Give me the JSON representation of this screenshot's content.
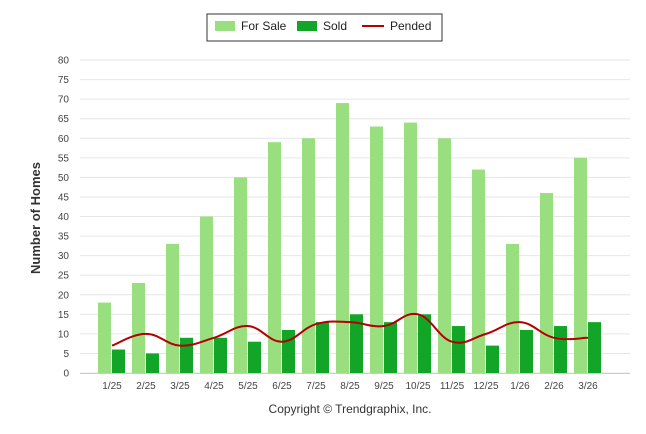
{
  "chart_data": {
    "type": "bar",
    "title": "",
    "xlabel": "",
    "ylabel": "Number of Homes",
    "ylim": [
      0,
      80
    ],
    "ytick_step": 5,
    "categories": [
      "1/25",
      "2/25",
      "3/25",
      "4/25",
      "5/25",
      "6/25",
      "7/25",
      "8/25",
      "9/25",
      "10/25",
      "11/25",
      "12/25",
      "1/26",
      "2/26",
      "3/26"
    ],
    "series": [
      {
        "name": "For Sale",
        "type": "bar",
        "color": "#9adf7f",
        "values": [
          18,
          23,
          33,
          40,
          50,
          59,
          60,
          69,
          63,
          64,
          60,
          52,
          33,
          46,
          55
        ]
      },
      {
        "name": "Sold",
        "type": "bar",
        "color": "#13a528",
        "values": [
          6,
          5,
          9,
          9,
          8,
          11,
          13,
          15,
          13,
          15,
          12,
          7,
          11,
          12,
          13
        ]
      },
      {
        "name": "Pended",
        "type": "line",
        "color": "#b30000",
        "values": [
          7,
          10,
          7,
          9,
          12,
          8,
          12.5,
          13,
          12,
          15,
          8,
          10,
          13,
          9,
          9
        ]
      }
    ],
    "legend_position": "top-center",
    "footer": "Copyright © Trendgraphix, Inc."
  }
}
